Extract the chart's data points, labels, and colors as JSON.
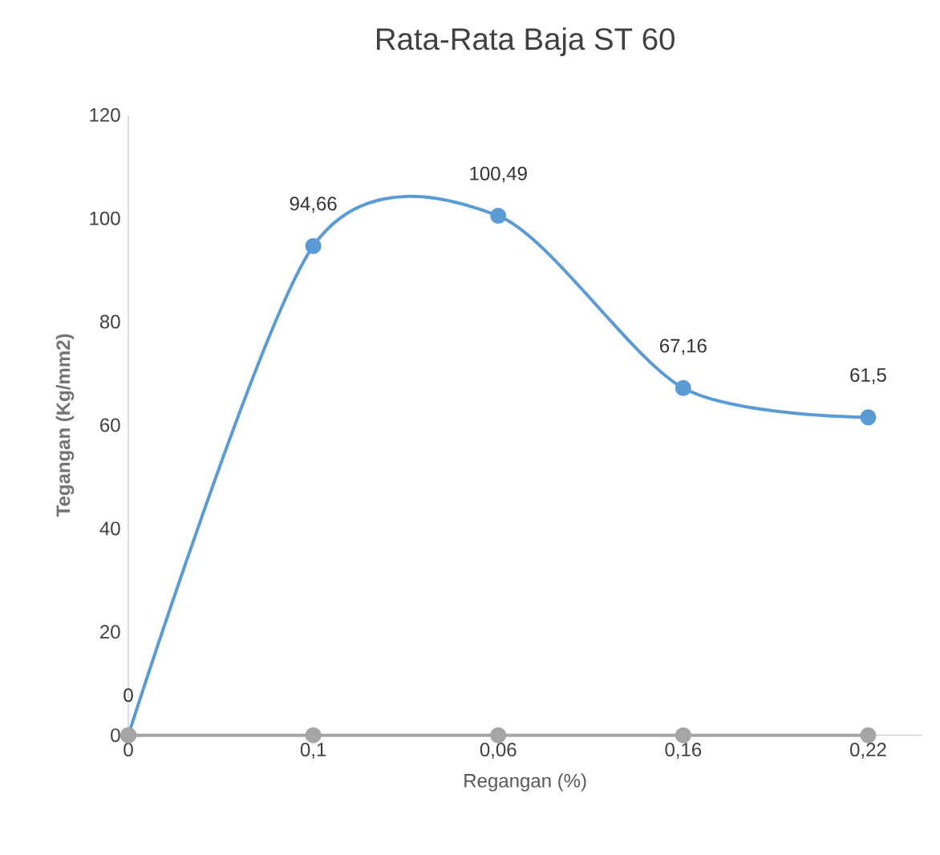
{
  "chart_data": {
    "type": "line",
    "title": "Rata-Rata Baja ST 60",
    "xlabel": "Regangan (%)",
    "ylabel": "Tegangan (Kg/mm2)",
    "categories": [
      "0",
      "0,1",
      "0,06",
      "0,16",
      "0,22"
    ],
    "series": [
      {
        "color": "#5b9bd5",
        "values": [
          0,
          94.66,
          100.49,
          67.16,
          61.5
        ],
        "value_labels": [
          "0",
          "94,66",
          "100,49",
          "67,16",
          "61,5"
        ]
      },
      {
        "color": "#a5a5a5",
        "values": [
          0,
          0,
          0,
          0,
          0
        ]
      }
    ],
    "ylim": [
      0,
      120
    ],
    "yticks": [
      0,
      20,
      40,
      60,
      80,
      100,
      120
    ],
    "marker": "circle",
    "line_style": "solid"
  }
}
